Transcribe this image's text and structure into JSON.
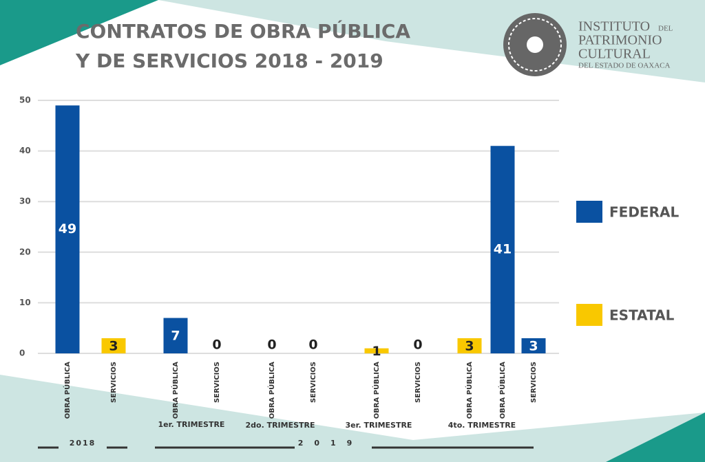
{
  "chart_data": {
    "type": "bar",
    "title": [
      "CONTRATOS DE OBRA PÚBLICA",
      "Y DE SERVICIOS 2018 - 2019"
    ],
    "logo": {
      "lines": [
        "INSTITUTO",
        "DEL",
        "PATRIMONIO",
        "CULTURAL",
        "DEL ESTADO DE OAXACA"
      ]
    },
    "categories": [
      "OBRA PÚBLICA",
      "SERVICIOS",
      "OBRA PÚBLICA",
      "SERVICIOS",
      "OBRA PÚBLICA",
      "SERVICIOS",
      "OBRA PÚBLICA",
      "SERVICIOS",
      "OBRA PÚBLICA",
      "OBRA PÚBLICA",
      "SERVICIOS"
    ],
    "groups": [
      "2018",
      "1er. TRIMESTRE",
      "2do. TRIMESTRE",
      "3er. TRIMESTRE",
      "4to. TRIMESTRE",
      "2019"
    ],
    "series": [
      {
        "name": "FEDERAL",
        "color": "#0a51a1",
        "values": [
          49,
          null,
          7,
          0,
          0,
          0,
          null,
          0,
          null,
          41,
          3
        ]
      },
      {
        "name": "ESTATAL",
        "color": "#f9c800",
        "values": [
          null,
          3,
          null,
          null,
          null,
          null,
          1,
          null,
          3,
          null,
          null
        ]
      }
    ],
    "ylim": [
      0,
      50
    ],
    "yticks": [
      0,
      10,
      20,
      30,
      40,
      50
    ],
    "grid": true
  }
}
